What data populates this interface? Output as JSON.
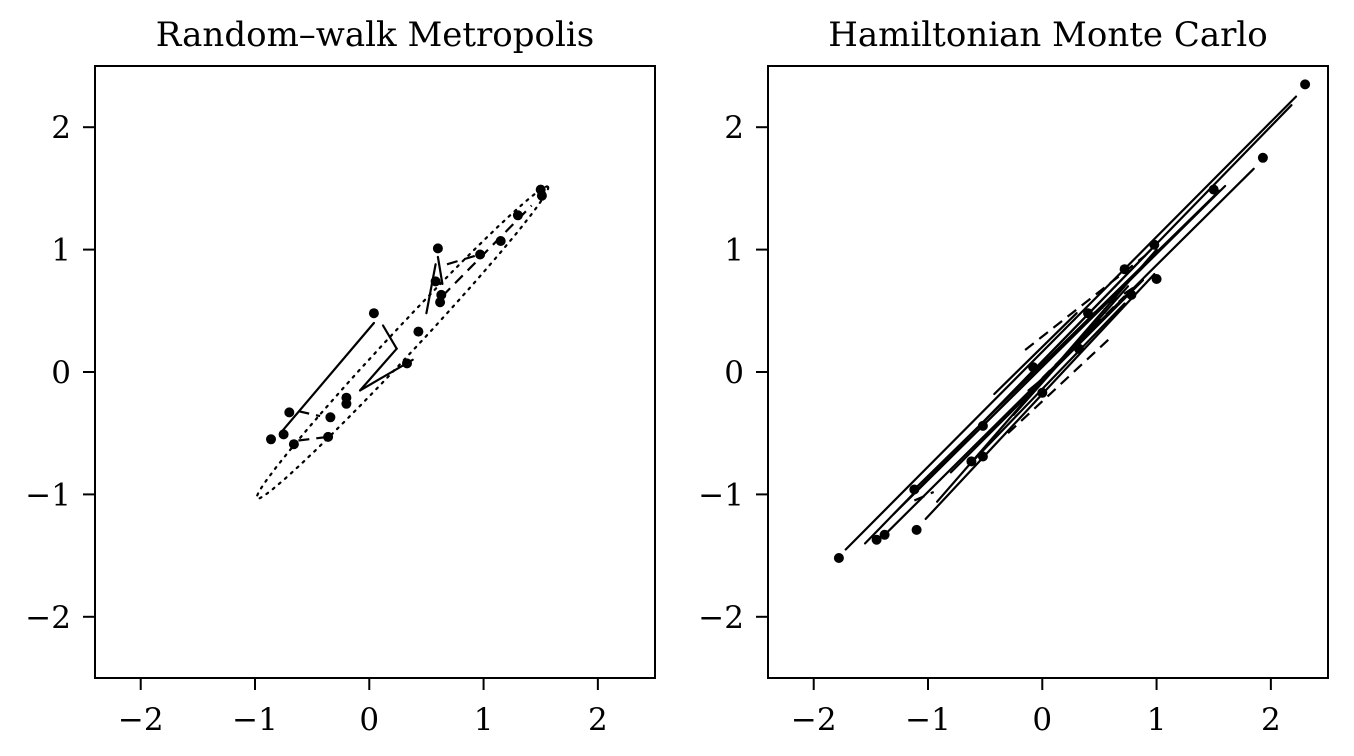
{
  "chart_data": [
    {
      "type": "scatter",
      "title": "Random–walk Metropolis",
      "xlim": [
        -2.4,
        2.5
      ],
      "ylim": [
        -2.5,
        2.5
      ],
      "xticks": [
        -2,
        -1,
        0,
        1,
        2
      ],
      "yticks": [
        -2,
        -1,
        0,
        1,
        2
      ],
      "xtick_labels": [
        "−2",
        "−1",
        "0",
        "1",
        "2"
      ],
      "ytick_labels": [
        "−2",
        "−1",
        "0",
        "1",
        "2"
      ],
      "grid": false,
      "target_ellipse": {
        "center": [
          0.29,
          0.24
        ],
        "angle_deg": 45,
        "semi_major": 1.8,
        "semi_minor": 0.11,
        "style": "dotted"
      },
      "points": [
        {
          "x": 1.5,
          "y": 1.49
        },
        {
          "x": 1.51,
          "y": 1.44
        },
        {
          "x": 1.3,
          "y": 1.28
        },
        {
          "x": 1.15,
          "y": 1.07
        },
        {
          "x": 0.97,
          "y": 0.96
        },
        {
          "x": 0.6,
          "y": 1.01
        },
        {
          "x": 0.58,
          "y": 0.74
        },
        {
          "x": 0.63,
          "y": 0.63
        },
        {
          "x": 0.62,
          "y": 0.57
        },
        {
          "x": 0.43,
          "y": 0.33
        },
        {
          "x": 0.04,
          "y": 0.48
        },
        {
          "x": 0.33,
          "y": 0.07
        },
        {
          "x": -0.2,
          "y": -0.21
        },
        {
          "x": -0.2,
          "y": -0.26
        },
        {
          "x": -0.34,
          "y": -0.37
        },
        {
          "x": -0.36,
          "y": -0.53
        },
        {
          "x": -0.7,
          "y": -0.33
        },
        {
          "x": -0.75,
          "y": -0.51
        },
        {
          "x": -0.86,
          "y": -0.55
        },
        {
          "x": -0.66,
          "y": -0.59
        }
      ],
      "segments": [
        {
          "x": [
            -0.76,
            0.04
          ],
          "y": [
            -0.48,
            0.4
          ],
          "style": "solid"
        },
        {
          "x": [
            0.12,
            0.24
          ],
          "y": [
            0.38,
            0.19
          ],
          "style": "solid"
        },
        {
          "x": [
            0.24,
            -0.08
          ],
          "y": [
            0.19,
            -0.15
          ],
          "style": "solid"
        },
        {
          "x": [
            -0.08,
            0.38
          ],
          "y": [
            -0.15,
            0.1
          ],
          "style": "solid"
        },
        {
          "x": [
            0.5,
            0.58
          ],
          "y": [
            0.48,
            0.88
          ],
          "style": "solid"
        },
        {
          "x": [
            0.6,
            0.64
          ],
          "y": [
            0.94,
            0.72
          ],
          "style": "solid"
        },
        {
          "x": [
            0.64,
            1.42
          ],
          "y": [
            0.62,
            1.36
          ],
          "style": "dashed"
        },
        {
          "x": [
            0.68,
            1.0
          ],
          "y": [
            0.88,
            0.97
          ],
          "style": "dashed"
        },
        {
          "x": [
            -0.62,
            -0.43
          ],
          "y": [
            -0.32,
            -0.36
          ],
          "style": "dashed"
        },
        {
          "x": [
            -0.62,
            -0.36
          ],
          "y": [
            -0.56,
            -0.53
          ],
          "style": "dashed"
        },
        {
          "x": [
            -0.22,
            -0.2
          ],
          "y": [
            -0.28,
            -0.21
          ],
          "style": "solid"
        }
      ]
    },
    {
      "type": "scatter",
      "title": "Hamiltonian Monte Carlo",
      "xlim": [
        -2.4,
        2.5
      ],
      "ylim": [
        -2.5,
        2.5
      ],
      "xticks": [
        -2,
        -1,
        0,
        1,
        2
      ],
      "yticks": [
        -2,
        -1,
        0,
        1,
        2
      ],
      "xtick_labels": [
        "−2",
        "−1",
        "0",
        "1",
        "2"
      ],
      "ytick_labels": [
        "−2",
        "−1",
        "0",
        "1",
        "2"
      ],
      "grid": false,
      "points": [
        {
          "x": 2.3,
          "y": 2.35
        },
        {
          "x": 1.93,
          "y": 1.75
        },
        {
          "x": 1.5,
          "y": 1.49
        },
        {
          "x": 0.98,
          "y": 1.04
        },
        {
          "x": 1.0,
          "y": 0.76
        },
        {
          "x": 0.72,
          "y": 0.84
        },
        {
          "x": 0.78,
          "y": 0.63
        },
        {
          "x": 0.4,
          "y": 0.48
        },
        {
          "x": 0.32,
          "y": 0.19
        },
        {
          "x": -0.08,
          "y": 0.04
        },
        {
          "x": 0.0,
          "y": -0.17
        },
        {
          "x": -0.52,
          "y": -0.44
        },
        {
          "x": -0.52,
          "y": -0.69
        },
        {
          "x": -0.62,
          "y": -0.73
        },
        {
          "x": -1.12,
          "y": -0.96
        },
        {
          "x": -1.1,
          "y": -1.29
        },
        {
          "x": -1.38,
          "y": -1.33
        },
        {
          "x": -1.45,
          "y": -1.37
        },
        {
          "x": -1.78,
          "y": -1.52
        }
      ],
      "segments": [
        {
          "x": [
            -1.72,
            2.22
          ],
          "y": [
            -1.45,
            2.25
          ],
          "style": "solid"
        },
        {
          "x": [
            -1.55,
            2.18
          ],
          "y": [
            -1.4,
            2.18
          ],
          "style": "solid"
        },
        {
          "x": [
            -1.4,
            1.85
          ],
          "y": [
            -1.35,
            1.66
          ],
          "style": "solid"
        },
        {
          "x": [
            -1.3,
            1.6
          ],
          "y": [
            -1.16,
            1.52
          ],
          "style": "solid"
        },
        {
          "x": [
            -1.1,
            1.55
          ],
          "y": [
            -0.94,
            1.48
          ],
          "style": "solid"
        },
        {
          "x": [
            -1.02,
            0.98
          ],
          "y": [
            -1.2,
            0.8
          ],
          "style": "solid"
        },
        {
          "x": [
            -0.92,
            1.0
          ],
          "y": [
            -1.06,
            1.0
          ],
          "style": "solid"
        },
        {
          "x": [
            -0.8,
            0.88
          ],
          "y": [
            -0.82,
            0.75
          ],
          "style": "solid"
        },
        {
          "x": [
            -0.64,
            0.72
          ],
          "y": [
            -0.76,
            0.56
          ],
          "style": "solid"
        },
        {
          "x": [
            -0.56,
            0.95
          ],
          "y": [
            -0.45,
            1.0
          ],
          "style": "solid"
        },
        {
          "x": [
            -0.25,
            0.75
          ],
          "y": [
            -0.35,
            0.7
          ],
          "style": "solid"
        },
        {
          "x": [
            -0.42,
            0.3
          ],
          "y": [
            -0.18,
            0.48
          ],
          "style": "solid"
        },
        {
          "x": [
            0.0,
            0.72
          ],
          "y": [
            -0.05,
            0.62
          ],
          "style": "dashed"
        },
        {
          "x": [
            -0.15,
            0.9
          ],
          "y": [
            0.18,
            0.95
          ],
          "style": "dashed"
        },
        {
          "x": [
            -0.3,
            0.62
          ],
          "y": [
            -0.5,
            0.3
          ],
          "style": "dashed"
        },
        {
          "x": [
            0.45,
            0.85
          ],
          "y": [
            0.48,
            0.72
          ],
          "style": "dashed"
        },
        {
          "x": [
            -0.12,
            0.05
          ],
          "y": [
            -0.15,
            -0.02
          ],
          "style": "solid"
        },
        {
          "x": [
            -1.12,
            -0.95
          ],
          "y": [
            -1.05,
            -0.98
          ],
          "style": "dashed"
        }
      ]
    }
  ]
}
